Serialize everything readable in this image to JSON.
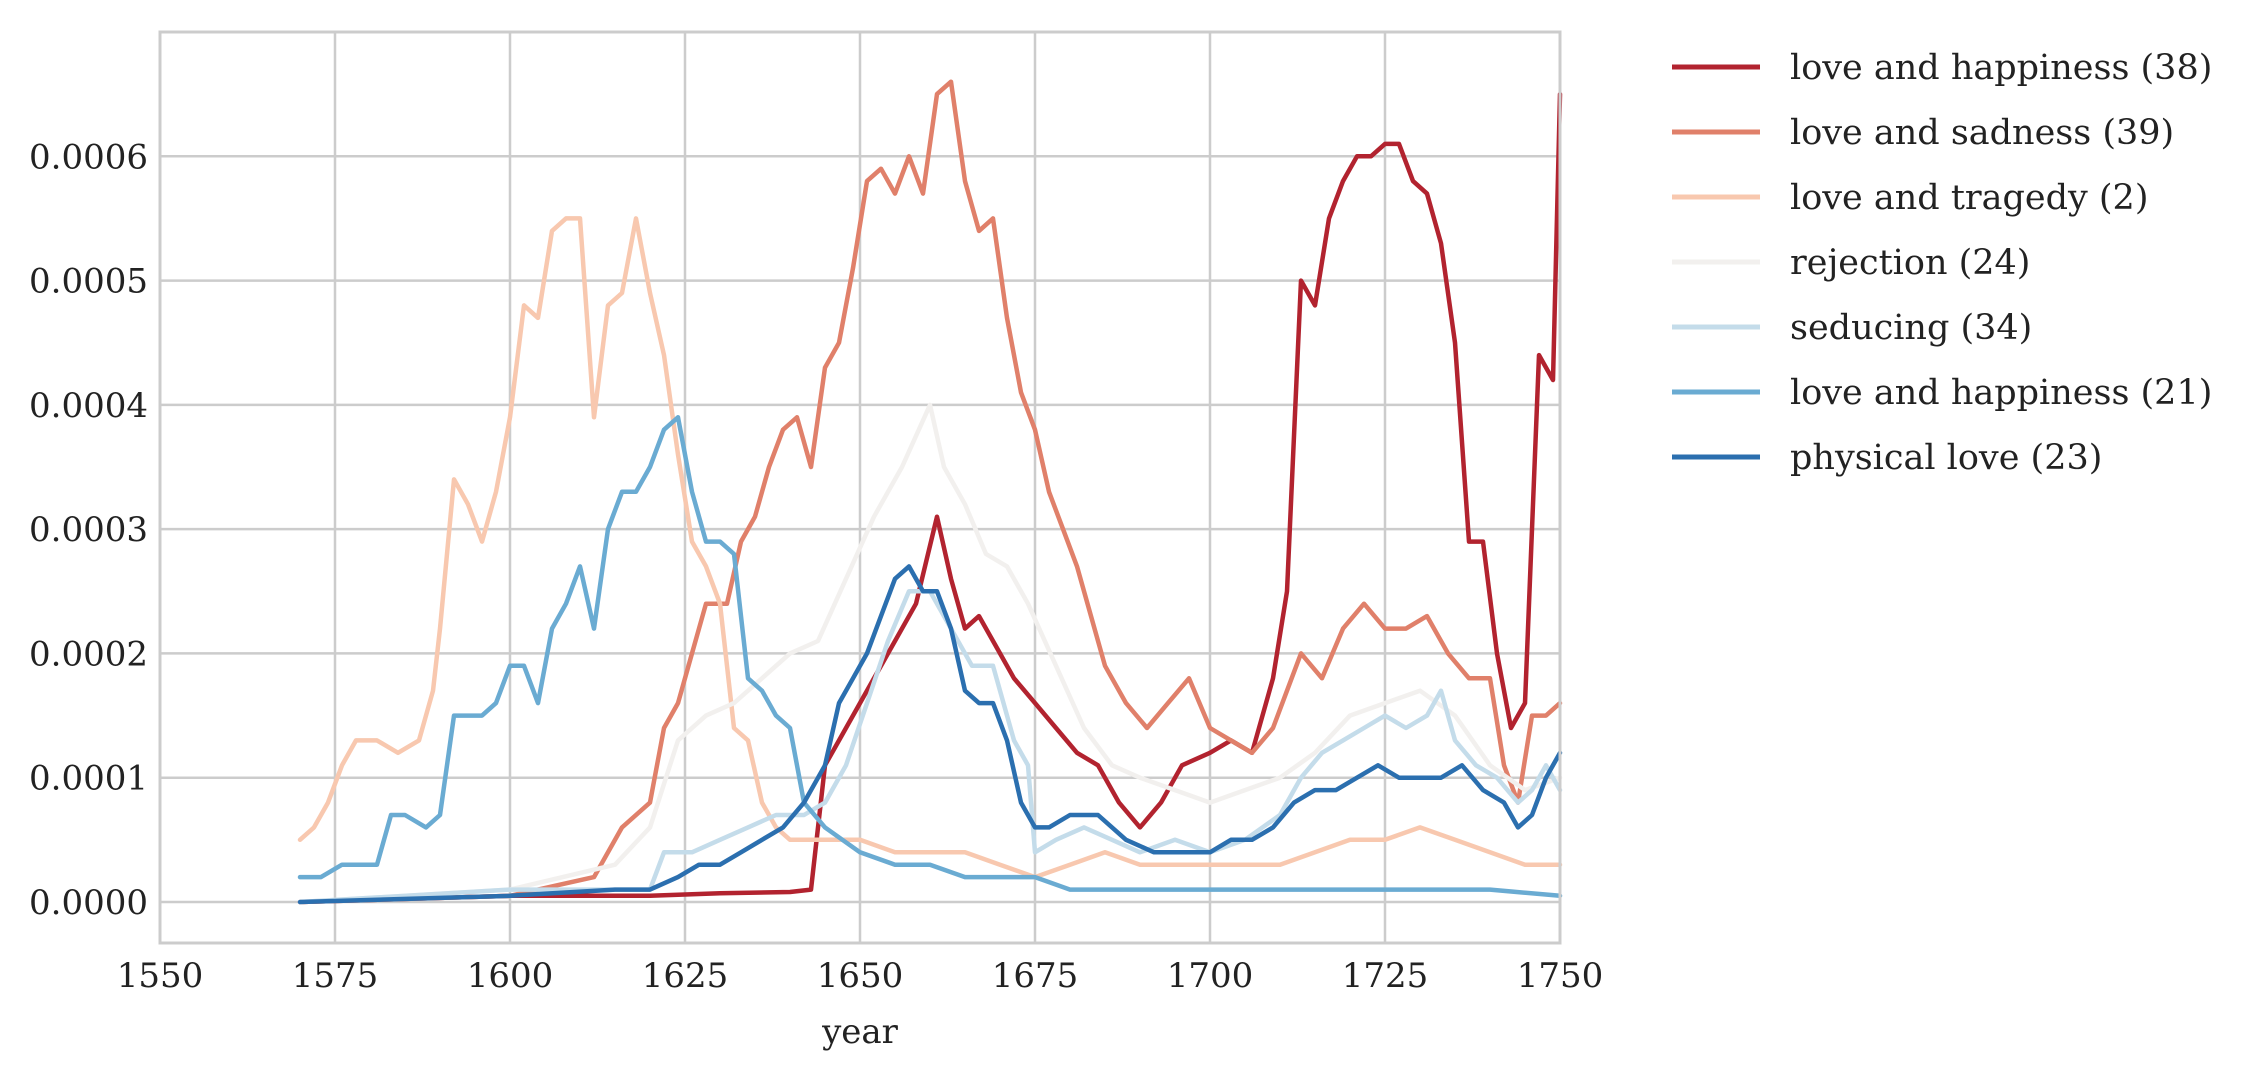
{
  "chart_data": {
    "type": "line",
    "title": "",
    "xlabel": "year",
    "ylabel": "",
    "xlim": [
      1550,
      1750
    ],
    "ylim": [
      -3.3e-05,
      0.0007
    ],
    "x_ticks": [
      1550,
      1575,
      1600,
      1625,
      1650,
      1675,
      1700,
      1725,
      1750
    ],
    "x_tick_labels": [
      "1550",
      "1575",
      "1600",
      "1625",
      "1650",
      "1675",
      "1700",
      "1725",
      "1750"
    ],
    "y_ticks": [
      0,
      0.0001,
      0.0002,
      0.0003,
      0.0004,
      0.0005,
      0.0006
    ],
    "y_tick_labels": [
      "0.0000",
      "0.0001",
      "0.0002",
      "0.0003",
      "0.0004",
      "0.0005",
      "0.0006"
    ],
    "grid": true,
    "legend_placement": "outside-right-top",
    "series": [
      {
        "name": "love and happiness (38)",
        "color": "#b2232f",
        "x": [
          1570,
          1600,
          1620,
          1630,
          1640,
          1643,
          1645,
          1648,
          1650,
          1654,
          1658,
          1661,
          1663,
          1665,
          1667,
          1670,
          1672,
          1675,
          1678,
          1681,
          1684,
          1687,
          1690,
          1693,
          1696,
          1700,
          1703,
          1706,
          1709,
          1711,
          1713,
          1715,
          1717,
          1719,
          1721,
          1723,
          1725,
          1727,
          1729,
          1731,
          1733,
          1735,
          1737,
          1739,
          1741,
          1743,
          1745,
          1747,
          1749,
          1750
        ],
        "y": [
          0.0,
          5e-06,
          5e-06,
          7e-06,
          8e-06,
          1e-05,
          0.00011,
          0.00014,
          0.00016,
          0.0002,
          0.00024,
          0.00031,
          0.00026,
          0.00022,
          0.00023,
          0.0002,
          0.00018,
          0.00016,
          0.00014,
          0.00012,
          0.00011,
          8e-05,
          6e-05,
          8e-05,
          0.00011,
          0.00012,
          0.00013,
          0.00012,
          0.00018,
          0.00025,
          0.0005,
          0.00048,
          0.00055,
          0.00058,
          0.0006,
          0.0006,
          0.00061,
          0.00061,
          0.00058,
          0.00057,
          0.00053,
          0.00045,
          0.00029,
          0.00029,
          0.0002,
          0.00014,
          0.00016,
          0.00044,
          0.00042,
          0.00065
        ]
      },
      {
        "name": "love and sadness (39)",
        "color": "#e0806a",
        "x": [
          1570,
          1600,
          1612,
          1616,
          1620,
          1622,
          1624,
          1626,
          1628,
          1631,
          1633,
          1635,
          1637,
          1639,
          1641,
          1643,
          1645,
          1647,
          1649,
          1651,
          1653,
          1655,
          1657,
          1659,
          1661,
          1663,
          1665,
          1667,
          1669,
          1671,
          1673,
          1675,
          1677,
          1679,
          1681,
          1683,
          1685,
          1688,
          1691,
          1694,
          1697,
          1700,
          1703,
          1706,
          1709,
          1711,
          1713,
          1716,
          1719,
          1722,
          1725,
          1728,
          1731,
          1734,
          1737,
          1740,
          1742,
          1744,
          1746,
          1748,
          1750
        ],
        "y": [
          0.0,
          5e-06,
          2e-05,
          6e-05,
          8e-05,
          0.00014,
          0.00016,
          0.0002,
          0.00024,
          0.00024,
          0.00029,
          0.00031,
          0.00035,
          0.00038,
          0.00039,
          0.00035,
          0.00043,
          0.00045,
          0.00051,
          0.00058,
          0.00059,
          0.00057,
          0.0006,
          0.00057,
          0.00065,
          0.00066,
          0.00058,
          0.00054,
          0.00055,
          0.00047,
          0.00041,
          0.00038,
          0.00033,
          0.0003,
          0.00027,
          0.00023,
          0.00019,
          0.00016,
          0.00014,
          0.00016,
          0.00018,
          0.00014,
          0.00013,
          0.00012,
          0.00014,
          0.00017,
          0.0002,
          0.00018,
          0.00022,
          0.00024,
          0.00022,
          0.00022,
          0.00023,
          0.0002,
          0.00018,
          0.00018,
          0.00011,
          8e-05,
          0.00015,
          0.00015,
          0.00016
        ]
      },
      {
        "name": "love and tragedy (2)",
        "color": "#f8c8af",
        "x": [
          1570,
          1572,
          1574,
          1576,
          1578,
          1581,
          1584,
          1587,
          1589,
          1590,
          1592,
          1594,
          1596,
          1598,
          1600,
          1602,
          1604,
          1606,
          1608,
          1610,
          1612,
          1614,
          1616,
          1618,
          1620,
          1622,
          1624,
          1626,
          1628,
          1630,
          1632,
          1634,
          1636,
          1638,
          1640,
          1645,
          1650,
          1655,
          1660,
          1665,
          1670,
          1675,
          1680,
          1685,
          1690,
          1695,
          1700,
          1705,
          1710,
          1715,
          1720,
          1725,
          1730,
          1735,
          1740,
          1745,
          1750
        ],
        "y": [
          5e-05,
          6e-05,
          8e-05,
          0.00011,
          0.00013,
          0.00013,
          0.00012,
          0.00013,
          0.00017,
          0.00022,
          0.00034,
          0.00032,
          0.00029,
          0.00033,
          0.00039,
          0.00048,
          0.00047,
          0.00054,
          0.00055,
          0.00055,
          0.00039,
          0.00048,
          0.00049,
          0.00055,
          0.00049,
          0.00044,
          0.00036,
          0.00029,
          0.00027,
          0.00024,
          0.00014,
          0.00013,
          8e-05,
          6e-05,
          5e-05,
          5e-05,
          5e-05,
          4e-05,
          4e-05,
          4e-05,
          3e-05,
          2e-05,
          3e-05,
          4e-05,
          3e-05,
          3e-05,
          3e-05,
          3e-05,
          3e-05,
          4e-05,
          5e-05,
          5e-05,
          6e-05,
          5e-05,
          4e-05,
          3e-05,
          3e-05
        ]
      },
      {
        "name": "rejection (24)",
        "color": "#f2f0ee",
        "x": [
          1570,
          1600,
          1615,
          1620,
          1624,
          1628,
          1632,
          1636,
          1640,
          1644,
          1648,
          1652,
          1656,
          1660,
          1662,
          1665,
          1668,
          1671,
          1674,
          1678,
          1682,
          1686,
          1690,
          1695,
          1700,
          1705,
          1710,
          1715,
          1720,
          1725,
          1730,
          1735,
          1740,
          1745,
          1750
        ],
        "y": [
          0.0,
          1e-05,
          3e-05,
          6e-05,
          0.00013,
          0.00015,
          0.00016,
          0.00018,
          0.0002,
          0.00021,
          0.00026,
          0.00031,
          0.00035,
          0.0004,
          0.00035,
          0.00032,
          0.00028,
          0.00027,
          0.00024,
          0.00019,
          0.00014,
          0.00011,
          0.0001,
          9e-05,
          8e-05,
          9e-05,
          0.0001,
          0.00012,
          0.00015,
          0.00016,
          0.00017,
          0.00015,
          0.00011,
          9e-05,
          0.0001
        ]
      },
      {
        "name": "seducing (34)",
        "color": "#c4dcea",
        "x": [
          1570,
          1600,
          1620,
          1622,
          1626,
          1630,
          1634,
          1638,
          1642,
          1645,
          1648,
          1651,
          1654,
          1657,
          1660,
          1663,
          1666,
          1669,
          1672,
          1674,
          1675,
          1678,
          1682,
          1686,
          1690,
          1695,
          1700,
          1705,
          1710,
          1713,
          1716,
          1719,
          1722,
          1725,
          1728,
          1731,
          1733,
          1735,
          1738,
          1741,
          1744,
          1746,
          1748,
          1750
        ],
        "y": [
          0.0,
          1e-05,
          1e-05,
          4e-05,
          4e-05,
          5e-05,
          6e-05,
          7e-05,
          7e-05,
          8e-05,
          0.00011,
          0.00016,
          0.00021,
          0.00025,
          0.00025,
          0.00022,
          0.00019,
          0.00019,
          0.00013,
          0.00011,
          4e-05,
          5e-05,
          6e-05,
          5e-05,
          4e-05,
          5e-05,
          4e-05,
          5e-05,
          7e-05,
          0.0001,
          0.00012,
          0.00013,
          0.00014,
          0.00015,
          0.00014,
          0.00015,
          0.00017,
          0.00013,
          0.00011,
          0.0001,
          8e-05,
          9e-05,
          0.00011,
          9e-05
        ]
      },
      {
        "name": "love and happiness (21)",
        "color": "#6aabd2",
        "x": [
          1570,
          1573,
          1576,
          1579,
          1581,
          1583,
          1585,
          1588,
          1590,
          1592,
          1594,
          1596,
          1598,
          1600,
          1602,
          1604,
          1606,
          1608,
          1610,
          1612,
          1614,
          1616,
          1618,
          1620,
          1622,
          1624,
          1626,
          1628,
          1630,
          1632,
          1634,
          1636,
          1638,
          1640,
          1642,
          1645,
          1650,
          1655,
          1660,
          1665,
          1670,
          1675,
          1680,
          1690,
          1700,
          1710,
          1720,
          1730,
          1740,
          1750
        ],
        "y": [
          2e-05,
          2e-05,
          3e-05,
          3e-05,
          3e-05,
          7e-05,
          7e-05,
          6e-05,
          7e-05,
          0.00015,
          0.00015,
          0.00015,
          0.00016,
          0.00019,
          0.00019,
          0.00016,
          0.00022,
          0.00024,
          0.00027,
          0.00022,
          0.0003,
          0.00033,
          0.00033,
          0.00035,
          0.00038,
          0.00039,
          0.00033,
          0.00029,
          0.00029,
          0.00028,
          0.00018,
          0.00017,
          0.00015,
          0.00014,
          8e-05,
          6e-05,
          4e-05,
          3e-05,
          3e-05,
          2e-05,
          2e-05,
          2e-05,
          1e-05,
          1e-05,
          1e-05,
          1e-05,
          1e-05,
          1e-05,
          1e-05,
          5e-06
        ]
      },
      {
        "name": "physical love (23)",
        "color": "#2b6faf",
        "x": [
          1570,
          1600,
          1615,
          1620,
          1624,
          1627,
          1630,
          1633,
          1636,
          1639,
          1642,
          1645,
          1647,
          1649,
          1651,
          1653,
          1655,
          1657,
          1659,
          1661,
          1663,
          1665,
          1667,
          1669,
          1671,
          1673,
          1675,
          1677,
          1680,
          1684,
          1688,
          1692,
          1696,
          1700,
          1703,
          1706,
          1709,
          1712,
          1715,
          1718,
          1721,
          1724,
          1727,
          1730,
          1733,
          1736,
          1739,
          1742,
          1744,
          1746,
          1748,
          1750
        ],
        "y": [
          0.0,
          5e-06,
          1e-05,
          1e-05,
          2e-05,
          3e-05,
          3e-05,
          4e-05,
          5e-05,
          6e-05,
          8e-05,
          0.00011,
          0.00016,
          0.00018,
          0.0002,
          0.00023,
          0.00026,
          0.00027,
          0.00025,
          0.00025,
          0.00022,
          0.00017,
          0.00016,
          0.00016,
          0.00013,
          8e-05,
          6e-05,
          6e-05,
          7e-05,
          7e-05,
          5e-05,
          4e-05,
          4e-05,
          4e-05,
          5e-05,
          5e-05,
          6e-05,
          8e-05,
          9e-05,
          9e-05,
          0.0001,
          0.00011,
          0.0001,
          0.0001,
          0.0001,
          0.00011,
          9e-05,
          8e-05,
          6e-05,
          7e-05,
          0.0001,
          0.00012
        ]
      }
    ]
  }
}
